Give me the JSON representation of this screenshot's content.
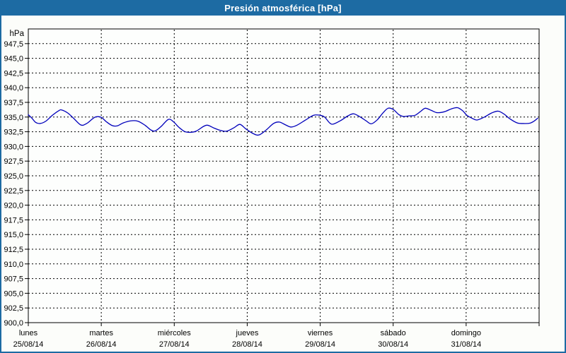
{
  "window": {
    "title": "Presión atmosférica [hPa]",
    "header_bg": "#1d6ba3",
    "header_text_color": "#ffffff",
    "frame_color": "#1d6ba3",
    "content_bg": "#fcfdfa"
  },
  "chart_data": {
    "type": "line",
    "title": "Presión atmosférica [hPa]",
    "unit_label": "hPa",
    "grid": "dashed",
    "legend": "none",
    "colors": {
      "line": "#0000bb",
      "grid": "#000000",
      "axis": "#000000",
      "text": "#000000",
      "plot_bg": "#fdfefd"
    },
    "y_axis": {
      "min": 900,
      "max": 950,
      "tick_step": 2.5,
      "ticks": [
        [
          947.5,
          "947,5"
        ],
        [
          945.0,
          "945,0"
        ],
        [
          942.5,
          "942,5"
        ],
        [
          940.0,
          "940,0"
        ],
        [
          937.5,
          "937,5"
        ],
        [
          935.0,
          "935,0"
        ],
        [
          932.5,
          "932,5"
        ],
        [
          930.0,
          "930,0"
        ],
        [
          927.5,
          "927,5"
        ],
        [
          925.0,
          "925,0"
        ],
        [
          922.5,
          "922,5"
        ],
        [
          920.0,
          "920,0"
        ],
        [
          917.5,
          "917,5"
        ],
        [
          915.0,
          "915,0"
        ],
        [
          912.5,
          "912,5"
        ],
        [
          910.0,
          "910,0"
        ],
        [
          907.5,
          "907,5"
        ],
        [
          905.0,
          "905,0"
        ],
        [
          902.5,
          "902,5"
        ],
        [
          900.0,
          "900,0"
        ]
      ]
    },
    "x_axis": {
      "num_days": 7,
      "days": [
        {
          "name": "lunes",
          "date": "25/08/14"
        },
        {
          "name": "martes",
          "date": "26/08/14"
        },
        {
          "name": "miércoles",
          "date": "27/08/14"
        },
        {
          "name": "jueves",
          "date": "28/08/14"
        },
        {
          "name": "viernes",
          "date": "29/08/14"
        },
        {
          "name": "sábado",
          "date": "30/08/14"
        },
        {
          "name": "domingo",
          "date": "31/08/14"
        }
      ]
    },
    "series": [
      {
        "name": "Presión atmosférica",
        "color": "#0000bb",
        "points_t_days_vs_hpa": [
          [
            0.0,
            935.4
          ],
          [
            0.05,
            934.8
          ],
          [
            0.1,
            934.1
          ],
          [
            0.16,
            933.9
          ],
          [
            0.24,
            934.3
          ],
          [
            0.33,
            935.3
          ],
          [
            0.42,
            936.1
          ],
          [
            0.46,
            936.2
          ],
          [
            0.54,
            935.7
          ],
          [
            0.62,
            934.8
          ],
          [
            0.72,
            933.65
          ],
          [
            0.8,
            933.9
          ],
          [
            0.88,
            934.7
          ],
          [
            0.93,
            935.05
          ],
          [
            1.0,
            934.95
          ],
          [
            1.07,
            934.2
          ],
          [
            1.15,
            933.55
          ],
          [
            1.22,
            933.5
          ],
          [
            1.3,
            934.0
          ],
          [
            1.4,
            934.35
          ],
          [
            1.5,
            934.3
          ],
          [
            1.6,
            933.6
          ],
          [
            1.68,
            932.8
          ],
          [
            1.74,
            932.65
          ],
          [
            1.82,
            933.4
          ],
          [
            1.92,
            934.6
          ],
          [
            1.99,
            934.2
          ],
          [
            2.06,
            933.3
          ],
          [
            2.14,
            932.55
          ],
          [
            2.22,
            932.4
          ],
          [
            2.3,
            932.6
          ],
          [
            2.4,
            933.4
          ],
          [
            2.46,
            933.6
          ],
          [
            2.55,
            933.1
          ],
          [
            2.64,
            932.7
          ],
          [
            2.72,
            932.6
          ],
          [
            2.82,
            933.2
          ],
          [
            2.9,
            933.75
          ],
          [
            2.98,
            933.0
          ],
          [
            3.08,
            932.2
          ],
          [
            3.16,
            931.95
          ],
          [
            3.26,
            932.8
          ],
          [
            3.36,
            933.9
          ],
          [
            3.44,
            934.15
          ],
          [
            3.52,
            933.7
          ],
          [
            3.6,
            933.3
          ],
          [
            3.68,
            933.6
          ],
          [
            3.8,
            934.5
          ],
          [
            3.91,
            935.3
          ],
          [
            4.0,
            935.3
          ],
          [
            4.06,
            935.0
          ],
          [
            4.13,
            934.0
          ],
          [
            4.18,
            933.8
          ],
          [
            4.28,
            934.4
          ],
          [
            4.38,
            935.2
          ],
          [
            4.46,
            935.55
          ],
          [
            4.55,
            935.0
          ],
          [
            4.63,
            934.35
          ],
          [
            4.7,
            933.85
          ],
          [
            4.78,
            934.5
          ],
          [
            4.86,
            935.7
          ],
          [
            4.93,
            936.5
          ],
          [
            5.0,
            936.3
          ],
          [
            5.08,
            935.4
          ],
          [
            5.14,
            935.1
          ],
          [
            5.22,
            935.2
          ],
          [
            5.3,
            935.3
          ],
          [
            5.38,
            936.0
          ],
          [
            5.44,
            936.5
          ],
          [
            5.52,
            936.15
          ],
          [
            5.6,
            935.75
          ],
          [
            5.7,
            935.9
          ],
          [
            5.8,
            936.4
          ],
          [
            5.88,
            936.6
          ],
          [
            5.95,
            936.1
          ],
          [
            6.01,
            935.3
          ],
          [
            6.08,
            934.8
          ],
          [
            6.15,
            934.5
          ],
          [
            6.25,
            935.0
          ],
          [
            6.35,
            935.7
          ],
          [
            6.44,
            936.0
          ],
          [
            6.52,
            935.5
          ],
          [
            6.6,
            934.7
          ],
          [
            6.7,
            934.0
          ],
          [
            6.78,
            933.9
          ],
          [
            6.87,
            933.95
          ],
          [
            6.93,
            934.3
          ],
          [
            6.98,
            934.8
          ]
        ]
      }
    ]
  }
}
